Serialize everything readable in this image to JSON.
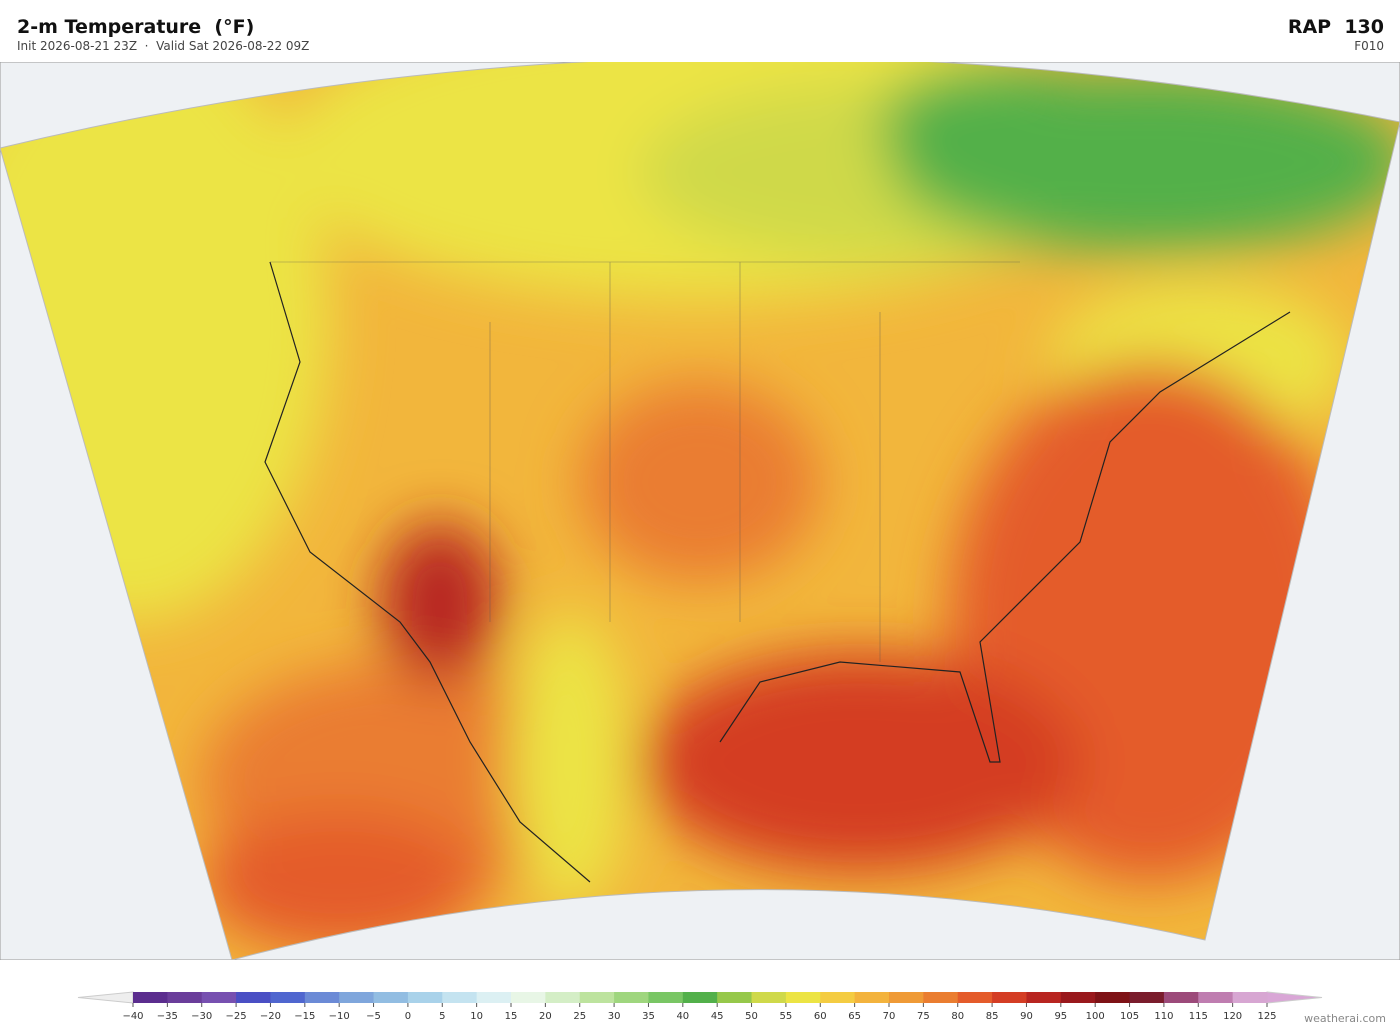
{
  "header": {
    "title": "2-m Temperature  (°F)",
    "subtitle": "Init 2026-08-21 23Z  ·  Valid Sat 2026-08-22 09Z",
    "model": "RAP  130",
    "forecast_hour": "F010"
  },
  "colorbar": {
    "ticks": [
      {
        "value": -40,
        "label": "−40"
      },
      {
        "value": -35,
        "label": "−35"
      },
      {
        "value": -30,
        "label": "−30"
      },
      {
        "value": -25,
        "label": "−25"
      },
      {
        "value": -20,
        "label": "−20"
      },
      {
        "value": -15,
        "label": "−15"
      },
      {
        "value": -10,
        "label": "−10"
      },
      {
        "value": -5,
        "label": "−5"
      },
      0,
      5,
      10,
      15,
      20,
      25,
      30,
      35,
      40,
      45,
      50,
      55,
      60,
      65,
      70,
      75,
      80,
      85,
      90,
      95,
      100,
      105,
      110,
      115,
      120,
      125
    ],
    "colors": [
      "#5b2d8e",
      "#6a3d9a",
      "#7750b0",
      "#4a4fc4",
      "#4f66cf",
      "#6b8ad6",
      "#7fa6dc",
      "#92bde2",
      "#a9d2ea",
      "#c4e3f0",
      "#dcf0f3",
      "#e8f6e6",
      "#d4eec6",
      "#bde39e",
      "#9fd67e",
      "#79c664",
      "#52b04a",
      "#96c84a",
      "#cfd94a",
      "#ece444",
      "#f4cc42",
      "#f3b33d",
      "#ef9a36",
      "#ea7d30",
      "#e45b2a",
      "#d43d24",
      "#b82520",
      "#99181c",
      "#7e1216",
      "#7a1c2c",
      "#9c4a7a",
      "#bf7db0",
      "#d7a6d2"
    ],
    "under_color": "#eeeeee",
    "over_color": "#d9a6d6"
  },
  "credit": "weatherai.com"
}
